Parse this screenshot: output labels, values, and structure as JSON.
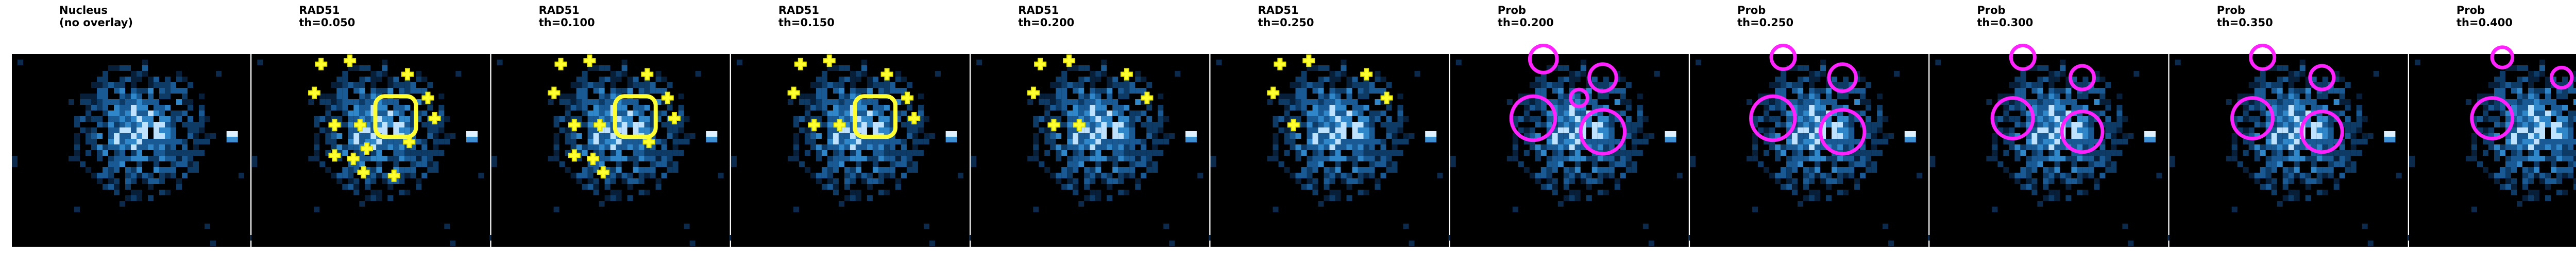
{
  "panels": [
    {
      "title": [
        "Nucleus",
        "(no overlay)"
      ]
    },
    {
      "title": [
        "RAD51",
        "th=0.050"
      ]
    },
    {
      "title": [
        "RAD51",
        "th=0.100"
      ]
    },
    {
      "title": [
        "RAD51",
        "th=0.150"
      ]
    },
    {
      "title": [
        "RAD51",
        "th=0.200"
      ]
    },
    {
      "title": [
        "RAD51",
        "th=0.250"
      ]
    },
    {
      "title": [
        "Prob",
        "th=0.200"
      ]
    },
    {
      "title": [
        "Prob",
        "th=0.250"
      ]
    },
    {
      "title": [
        "Prob",
        "th=0.300"
      ]
    },
    {
      "title": [
        "Prob",
        "th=0.350"
      ]
    },
    {
      "title": [
        "Prob",
        "th=0.400"
      ]
    }
  ]
}
